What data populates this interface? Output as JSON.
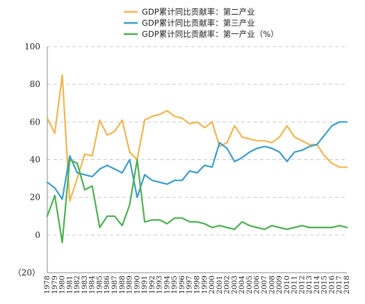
{
  "chart_data": {
    "type": "line",
    "x": [
      "1978",
      "1979",
      "1980",
      "1981",
      "1982",
      "1983",
      "1984",
      "1985",
      "1986",
      "1987",
      "1988",
      "1989",
      "1990",
      "1991",
      "1992",
      "1993",
      "1994",
      "1995",
      "1996",
      "1997",
      "1998",
      "1999",
      "2000",
      "2001",
      "2002",
      "2003",
      "2004",
      "2005",
      "2006",
      "2007",
      "2008",
      "2009",
      "2010",
      "2011",
      "2012",
      "2013",
      "2014",
      "2015",
      "2016",
      "2017",
      "2018"
    ],
    "ylim": [
      -20,
      100
    ],
    "yticks": [
      100,
      80,
      60,
      40,
      20,
      0,
      -20
    ],
    "ytick_labels": [
      "100",
      "80",
      "60",
      "40",
      "20",
      "0",
      "（20）"
    ],
    "grid": true,
    "legend_position": "top-center",
    "series": [
      {
        "name": "GDP累计同比贡献率：第二产业",
        "color": "#F0B550",
        "values": [
          62,
          54,
          85,
          18,
          30,
          43,
          42,
          61,
          53,
          55,
          61,
          44,
          40,
          61,
          63,
          64,
          66,
          63,
          62,
          59,
          60,
          57,
          60,
          47,
          49,
          58,
          52,
          51,
          50,
          50,
          49,
          52,
          58,
          52,
          50,
          48,
          48,
          42,
          38,
          36,
          36
        ]
      },
      {
        "name": "GDP累计同比贡献率：第三产业",
        "color": "#3B9CCB",
        "values": [
          28,
          25,
          19,
          42,
          33,
          32,
          31,
          35,
          37,
          35,
          33,
          40,
          20,
          32,
          29,
          28,
          27,
          29,
          29,
          34,
          33,
          37,
          36,
          49,
          46,
          39,
          41,
          44,
          46,
          47,
          46,
          44,
          39,
          44,
          45,
          47,
          48,
          53,
          58,
          60,
          60
        ]
      },
      {
        "name": "GDP累计同比贡献率：第一产业（%）",
        "color": "#4CAF50",
        "values": [
          10,
          21,
          -4,
          40,
          38,
          24,
          26,
          4,
          10,
          10,
          5,
          16,
          40,
          7,
          8,
          8,
          6,
          9,
          9,
          7,
          7,
          6,
          4,
          5,
          4,
          3,
          7,
          5,
          4,
          3,
          5,
          4,
          3,
          4,
          5,
          4,
          4,
          4,
          4,
          5,
          4
        ]
      }
    ]
  }
}
